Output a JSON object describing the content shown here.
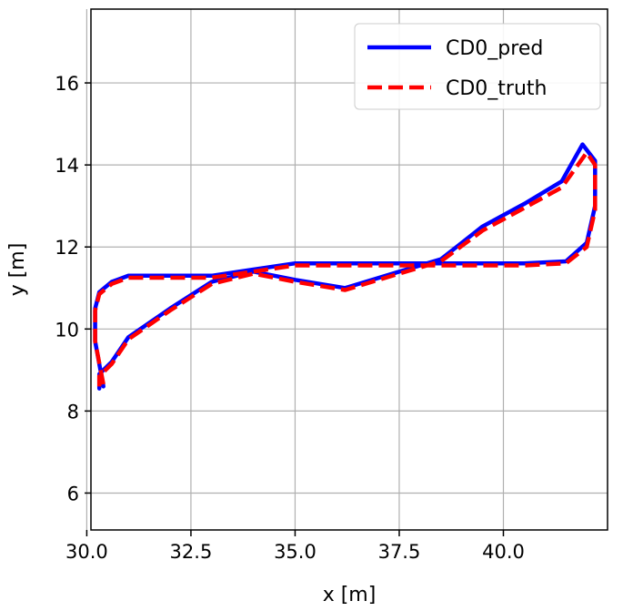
{
  "chart_data": {
    "type": "line",
    "xlabel": "x [m]",
    "ylabel": "y [m]",
    "xlim": [
      30.1,
      42.5
    ],
    "ylim": [
      5.1,
      17.8
    ],
    "xticks": [
      30.0,
      32.5,
      35.0,
      37.5,
      40.0
    ],
    "xtick_labels": [
      "30.0",
      "32.5",
      "35.0",
      "37.5",
      "40.0"
    ],
    "yticks": [
      6,
      8,
      10,
      12,
      14,
      16
    ],
    "ytick_labels": [
      "6",
      "8",
      "10",
      "12",
      "14",
      "16"
    ],
    "grid": true,
    "legend_position": "top-right",
    "series": [
      {
        "name": "CD0_pred",
        "color": "#0000ff",
        "style": "solid",
        "x": [
          30.4,
          30.2,
          30.2,
          30.3,
          30.6,
          31.0,
          32.0,
          33.0,
          34.0,
          35.0,
          36.5,
          38.0,
          39.5,
          40.5,
          41.5,
          42.0,
          42.2,
          42.2,
          41.9,
          41.4,
          40.5,
          39.5,
          38.5,
          37.5,
          36.2,
          35.0,
          34.0,
          33.0,
          32.0,
          31.0,
          30.6,
          30.3,
          30.3,
          30.3
        ],
        "y": [
          8.6,
          9.7,
          10.5,
          10.9,
          11.15,
          11.3,
          11.3,
          11.3,
          11.45,
          11.6,
          11.6,
          11.6,
          11.6,
          11.6,
          11.65,
          12.1,
          13.0,
          14.1,
          14.5,
          13.6,
          13.05,
          12.5,
          11.7,
          11.4,
          11.0,
          11.2,
          11.4,
          11.15,
          10.5,
          9.8,
          9.2,
          8.9,
          8.6,
          8.55
        ]
      },
      {
        "name": "CD0_truth",
        "color": "#ff0000",
        "style": "dashed",
        "x": [
          30.4,
          30.2,
          30.2,
          30.3,
          30.6,
          31.0,
          32.0,
          33.0,
          34.0,
          35.0,
          36.5,
          38.0,
          39.5,
          40.5,
          41.5,
          42.0,
          42.2,
          42.2,
          42.0,
          41.4,
          40.5,
          39.5,
          38.5,
          37.5,
          36.2,
          35.0,
          34.0,
          33.0,
          32.0,
          31.0,
          30.6,
          30.3,
          30.3,
          30.3
        ],
        "y": [
          8.65,
          9.7,
          10.45,
          10.85,
          11.1,
          11.25,
          11.25,
          11.25,
          11.4,
          11.55,
          11.55,
          11.55,
          11.55,
          11.55,
          11.6,
          12.0,
          12.9,
          14.0,
          14.3,
          13.45,
          12.95,
          12.4,
          11.65,
          11.35,
          10.95,
          11.15,
          11.35,
          11.1,
          10.45,
          9.75,
          9.15,
          8.85,
          8.6,
          8.6
        ]
      }
    ]
  }
}
